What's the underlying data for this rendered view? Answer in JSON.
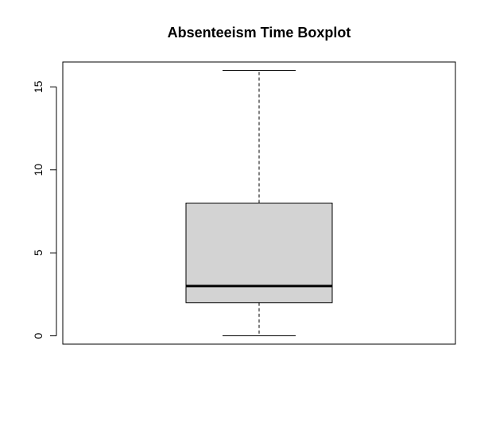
{
  "chart_data": {
    "type": "boxplot",
    "title": "Absenteeism Time Boxplot",
    "xlabel": "",
    "ylabel": "",
    "ylim": [
      -0.5,
      16.5
    ],
    "yticks": [
      0,
      5,
      10,
      15
    ],
    "ytick_labels": [
      "0",
      "5",
      "10",
      "15"
    ],
    "box": {
      "min": 0,
      "q1": 2,
      "median": 3,
      "q3": 8,
      "max": 16
    },
    "box_fill": "#d3d3d3",
    "grid": false
  }
}
